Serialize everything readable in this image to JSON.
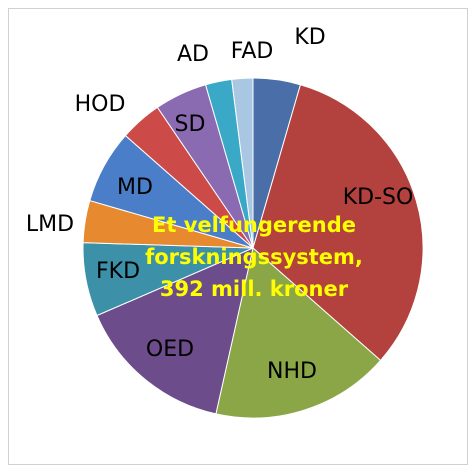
{
  "chart_data": {
    "type": "pie",
    "categories": [
      "KD",
      "KD-SO",
      "NHD",
      "OED",
      "FKD",
      "LMD",
      "MD",
      "HOD",
      "SD",
      "AD",
      "FAD"
    ],
    "values": [
      4.5,
      32,
      17,
      15,
      7,
      4,
      7,
      4,
      5,
      2.5,
      2
    ],
    "colors": [
      "#4a6ea8",
      "#b3413e",
      "#8ba646",
      "#6d4c8c",
      "#3c91a9",
      "#e6892f",
      "#4b7ec8",
      "#cc4a47",
      "#8a6bb1",
      "#39a9c7",
      "#a9c6e2"
    ],
    "annotation": [
      "Et velfungerende",
      "forskningssystem,",
      "392 mill. kroner"
    ]
  }
}
